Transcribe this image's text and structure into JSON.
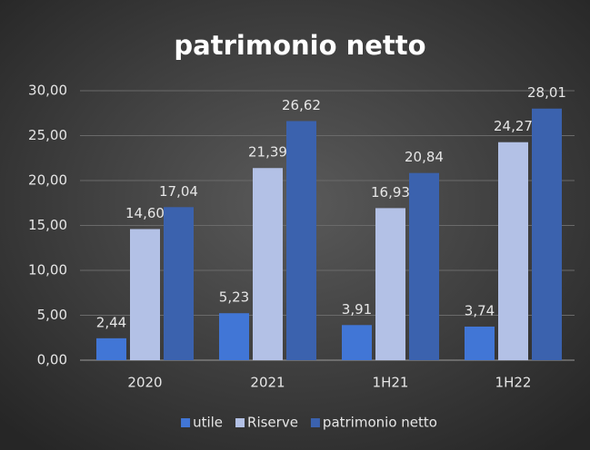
{
  "chart_data": {
    "type": "bar",
    "title": "patrimonio netto",
    "categories": [
      "2020",
      "2021",
      "1H21",
      "1H22"
    ],
    "series": [
      {
        "name": "utile",
        "color": "#4176d6",
        "values": [
          2.44,
          5.23,
          3.91,
          3.74
        ],
        "value_labels": [
          "2,44",
          "5,23",
          "3,91",
          "3,74"
        ]
      },
      {
        "name": "Riserve",
        "color": "#b3c1e6",
        "values": [
          14.6,
          21.39,
          16.93,
          24.27
        ],
        "value_labels": [
          "14,60",
          "21,39",
          "16,93",
          "24,27"
        ]
      },
      {
        "name": "patrimonio netto",
        "color": "#3b62ae",
        "values": [
          17.04,
          26.62,
          20.84,
          28.01
        ],
        "value_labels": [
          "17,04",
          "26,62",
          "20,84",
          "28,01"
        ]
      }
    ],
    "ylim": [
      0,
      30
    ],
    "yticks": [
      {
        "value": 0,
        "label": "0,00"
      },
      {
        "value": 5,
        "label": "5,00"
      },
      {
        "value": 10,
        "label": "10,00"
      },
      {
        "value": 15,
        "label": "15,00"
      },
      {
        "value": 20,
        "label": "20,00"
      },
      {
        "value": 25,
        "label": "25,00"
      },
      {
        "value": 30,
        "label": "30,00"
      }
    ],
    "grid": true,
    "legend": "bottom"
  }
}
